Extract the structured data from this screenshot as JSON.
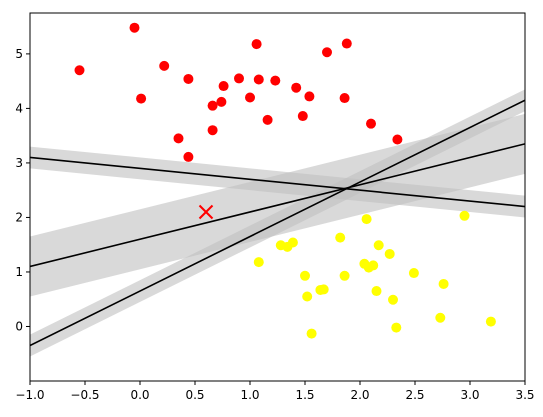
{
  "chart_data": {
    "type": "scatter",
    "title": "",
    "xlabel": "",
    "ylabel": "",
    "xlim": [
      -1.0,
      3.5
    ],
    "ylim": [
      -1.0,
      5.75
    ],
    "grid": false,
    "xticks": [
      -1.0,
      -0.5,
      0.0,
      0.5,
      1.0,
      1.5,
      2.0,
      2.5,
      3.0,
      3.5
    ],
    "xtick_labels": [
      "−1.0",
      "−0.5",
      "0.0",
      "0.5",
      "1.0",
      "1.5",
      "2.0",
      "2.5",
      "3.0",
      "3.5"
    ],
    "yticks": [
      0,
      1,
      2,
      3,
      4,
      5
    ],
    "ytick_labels": [
      "0",
      "1",
      "2",
      "3",
      "4",
      "5"
    ],
    "colors": {
      "class_red": "#ff0000",
      "class_yellow": "#ffff00",
      "new_point": "#ff0000",
      "line": "#000000",
      "band": "#bfbfbf"
    },
    "series": [
      {
        "color": "red",
        "points": [
          [
            -0.55,
            4.7
          ],
          [
            -0.05,
            5.48
          ],
          [
            0.01,
            4.18
          ],
          [
            0.22,
            4.78
          ],
          [
            0.35,
            3.45
          ],
          [
            0.44,
            4.54
          ],
          [
            0.44,
            3.11
          ],
          [
            0.66,
            4.05
          ],
          [
            0.66,
            3.6
          ],
          [
            0.74,
            4.12
          ],
          [
            0.76,
            4.41
          ],
          [
            0.9,
            4.55
          ],
          [
            1.0,
            4.2
          ],
          [
            1.06,
            5.18
          ],
          [
            1.08,
            4.53
          ],
          [
            1.16,
            3.79
          ],
          [
            1.23,
            4.51
          ],
          [
            1.42,
            4.38
          ],
          [
            1.48,
            3.86
          ],
          [
            1.54,
            4.22
          ],
          [
            1.7,
            5.03
          ],
          [
            1.86,
            4.19
          ],
          [
            1.88,
            5.19
          ],
          [
            2.1,
            3.72
          ],
          [
            2.34,
            3.43
          ]
        ]
      },
      {
        "color": "yellow",
        "points": [
          [
            1.08,
            1.18
          ],
          [
            1.28,
            1.49
          ],
          [
            1.34,
            1.46
          ],
          [
            1.39,
            1.54
          ],
          [
            1.5,
            0.93
          ],
          [
            1.52,
            0.55
          ],
          [
            1.56,
            -0.13
          ],
          [
            1.64,
            0.67
          ],
          [
            1.67,
            0.68
          ],
          [
            1.82,
            1.63
          ],
          [
            1.86,
            0.93
          ],
          [
            2.04,
            1.15
          ],
          [
            2.06,
            1.97
          ],
          [
            2.08,
            1.08
          ],
          [
            2.12,
            1.12
          ],
          [
            2.15,
            0.65
          ],
          [
            2.17,
            1.49
          ],
          [
            2.27,
            1.33
          ],
          [
            2.3,
            0.49
          ],
          [
            2.33,
            -0.02
          ],
          [
            2.49,
            0.98
          ],
          [
            2.73,
            0.16
          ],
          [
            2.76,
            0.78
          ],
          [
            2.95,
            2.03
          ],
          [
            3.19,
            0.09
          ]
        ]
      }
    ],
    "new_point": {
      "x": 0.6,
      "y": 2.1,
      "marker": "x"
    },
    "lines": [
      {
        "slope": -0.2,
        "intercept": 2.9,
        "margin": 0.2
      },
      {
        "slope": 0.5,
        "intercept": 1.6,
        "margin": 0.55
      },
      {
        "slope": 1.0,
        "intercept": 0.65,
        "margin": 0.2
      }
    ]
  }
}
